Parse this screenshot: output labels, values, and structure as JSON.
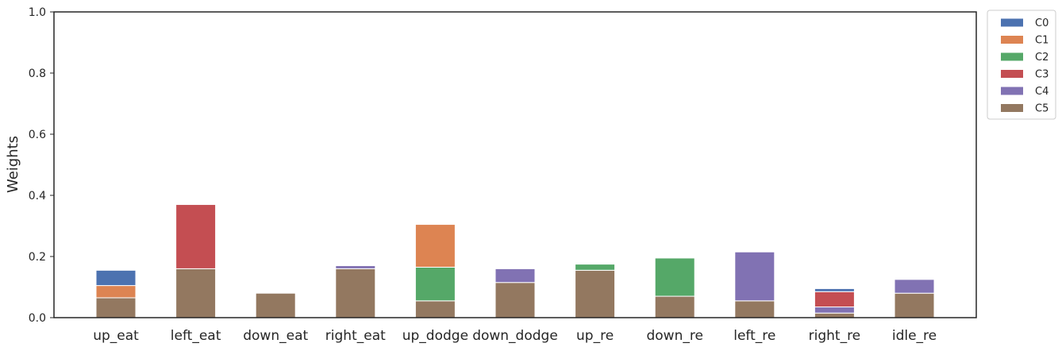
{
  "chart_data": {
    "type": "bar",
    "stacked": true,
    "ylabel": "Weights",
    "ylim": [
      0,
      1
    ],
    "yticks": [
      "0.0",
      "0.2",
      "0.4",
      "0.6",
      "0.8",
      "1.0"
    ],
    "grid": false,
    "legend_position": "outside-top-right",
    "categories": [
      "up_eat",
      "left_eat",
      "down_eat",
      "right_eat",
      "up_dodge",
      "down_dodge",
      "up_re",
      "down_re",
      "left_re",
      "right_re",
      "idle_re"
    ],
    "series": [
      {
        "name": "C0",
        "color": "#4c72b0",
        "values": [
          0.05,
          0,
          0,
          0,
          0,
          0,
          0,
          0,
          0,
          0.01,
          0
        ]
      },
      {
        "name": "C1",
        "color": "#dd8452",
        "values": [
          0.04,
          0,
          0,
          0,
          0.14,
          0,
          0,
          0,
          0,
          0,
          0
        ]
      },
      {
        "name": "C2",
        "color": "#55a868",
        "values": [
          0,
          0,
          0,
          0,
          0.11,
          0,
          0.02,
          0.125,
          0,
          0,
          0
        ]
      },
      {
        "name": "C3",
        "color": "#c44e52",
        "values": [
          0,
          0.21,
          0,
          0,
          0,
          0,
          0,
          0,
          0,
          0.05,
          0
        ]
      },
      {
        "name": "C4",
        "color": "#8172b3",
        "values": [
          0,
          0,
          0,
          0.01,
          0,
          0.045,
          0,
          0,
          0.16,
          0.02,
          0.045
        ]
      },
      {
        "name": "C5",
        "color": "#937860",
        "values": [
          0.065,
          0.16,
          0.08,
          0.16,
          0.055,
          0.115,
          0.155,
          0.07,
          0.055,
          0.015,
          0.08
        ]
      }
    ]
  }
}
